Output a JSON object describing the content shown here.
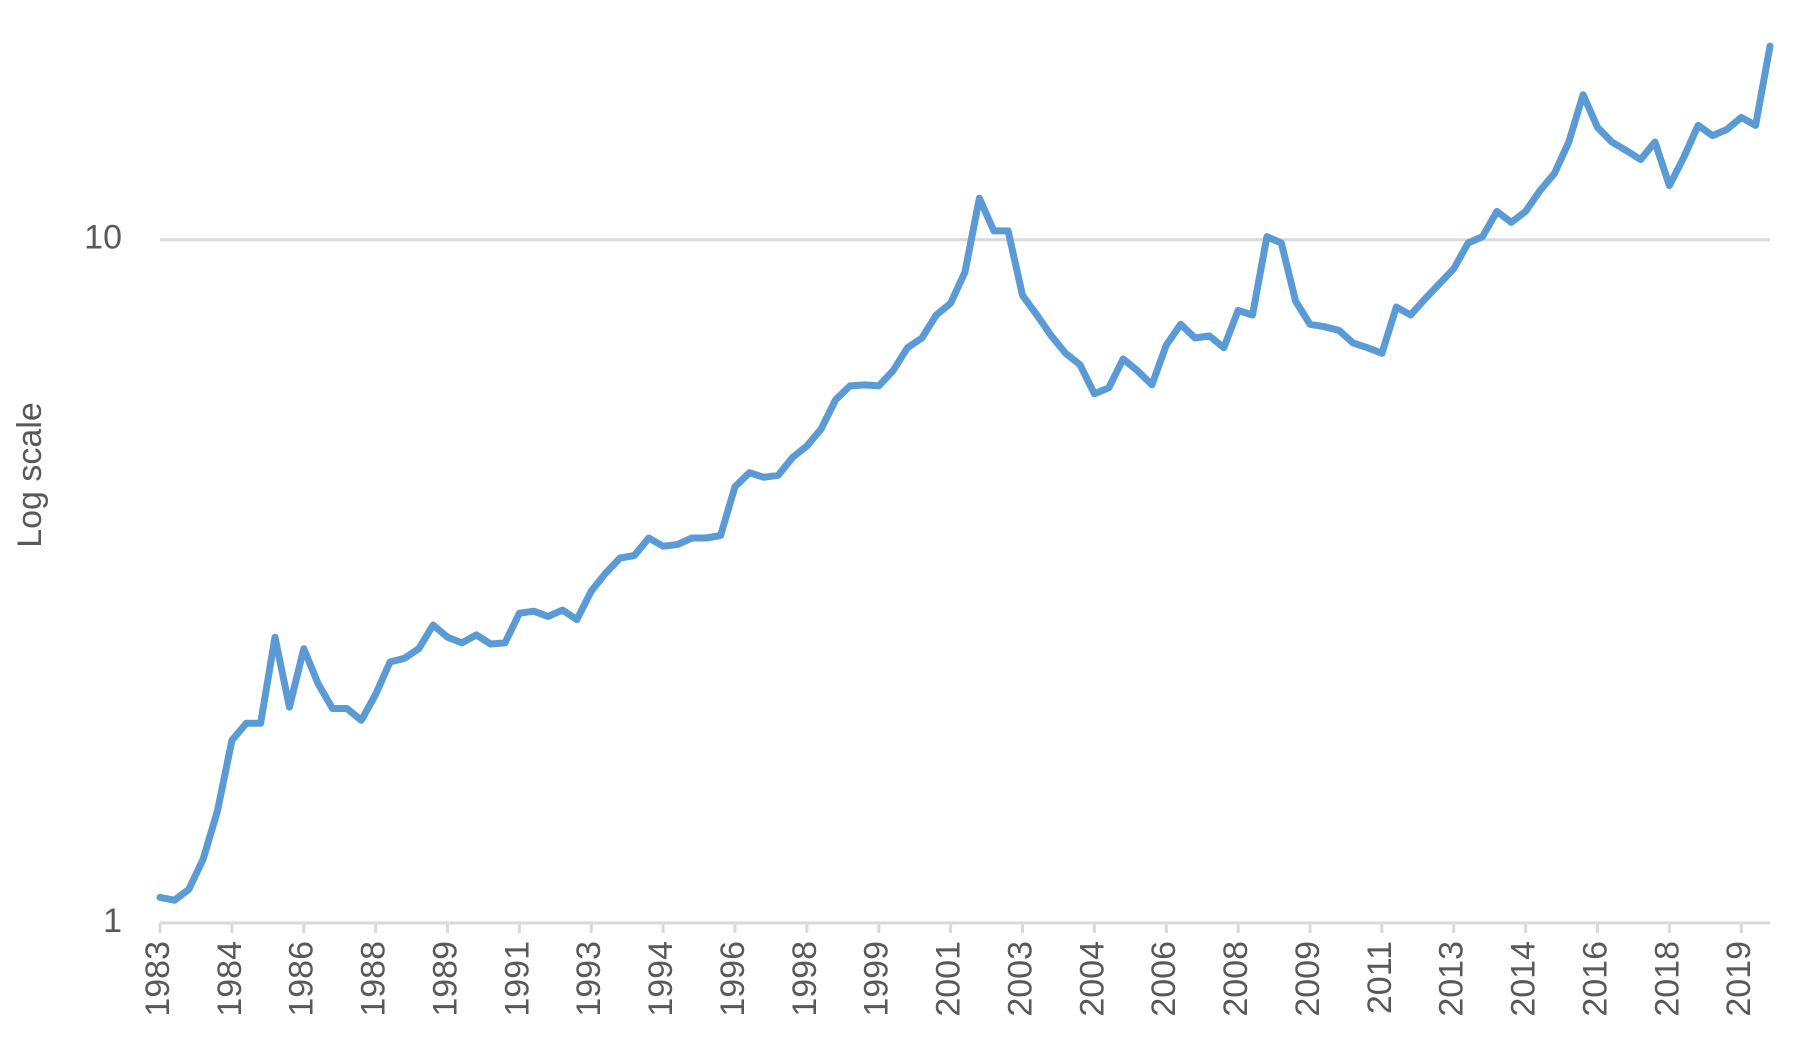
{
  "chart_data": {
    "type": "line",
    "y_label": "Log scale",
    "log_scale": true,
    "grid": true,
    "color": "#5b9bd5",
    "categories": [
      "1983",
      null,
      null,
      null,
      null,
      "1984",
      null,
      null,
      null,
      null,
      "1986",
      null,
      null,
      null,
      null,
      "1988",
      null,
      null,
      null,
      null,
      "1989",
      null,
      null,
      null,
      null,
      "1991",
      null,
      null,
      null,
      null,
      "1993",
      null,
      null,
      null,
      null,
      "1994",
      null,
      null,
      null,
      null,
      "1996",
      null,
      null,
      null,
      null,
      "1998",
      null,
      null,
      null,
      null,
      "1999",
      null,
      null,
      null,
      null,
      "2001",
      null,
      null,
      null,
      null,
      "2003",
      null,
      null,
      null,
      null,
      "2004",
      null,
      null,
      null,
      null,
      "2006",
      null,
      null,
      null,
      null,
      "2008",
      null,
      null,
      null,
      null,
      "2009",
      null,
      null,
      null,
      null,
      "2011",
      null,
      null,
      null,
      null,
      "2013",
      null,
      null,
      null,
      null,
      "2014",
      null,
      null,
      null,
      null,
      "2016",
      null,
      null,
      null,
      null,
      "2018",
      null,
      null,
      null,
      null,
      "2019",
      null,
      null
    ],
    "values": [
      1.09,
      1.08,
      1.12,
      1.24,
      1.46,
      1.85,
      1.96,
      1.96,
      2.62,
      2.07,
      2.52,
      2.24,
      2.06,
      2.06,
      1.98,
      2.16,
      2.41,
      2.44,
      2.52,
      2.73,
      2.62,
      2.57,
      2.64,
      2.56,
      2.57,
      2.84,
      2.86,
      2.81,
      2.87,
      2.78,
      3.06,
      3.25,
      3.42,
      3.45,
      3.66,
      3.56,
      3.58,
      3.66,
      3.66,
      3.69,
      4.35,
      4.56,
      4.49,
      4.52,
      4.8,
      4.99,
      5.29,
      5.83,
      6.11,
      6.13,
      6.11,
      6.43,
      6.95,
      7.18,
      7.76,
      8.07,
      8.97,
      11.5,
      10.3,
      10.3,
      8.29,
      7.76,
      7.23,
      6.82,
      6.56,
      5.95,
      6.07,
      6.69,
      6.43,
      6.13,
      7.01,
      7.52,
      7.18,
      7.23,
      6.95,
      7.88,
      7.76,
      10.1,
      9.89,
      8.13,
      7.52,
      7.46,
      7.37,
      7.06,
      6.95,
      6.82,
      7.97,
      7.76,
      8.19,
      8.62,
      9.07,
      9.89,
      10.1,
      11.0,
      10.6,
      11.0,
      11.8,
      12.5,
      13.9,
      16.3,
      14.6,
      13.9,
      13.5,
      13.1,
      13.9,
      12.0,
      13.2,
      14.7,
      14.2,
      14.5,
      15.1,
      14.7,
      19.2
    ],
    "ylim": [
      1,
      20
    ],
    "yticks": [
      1,
      10
    ]
  }
}
